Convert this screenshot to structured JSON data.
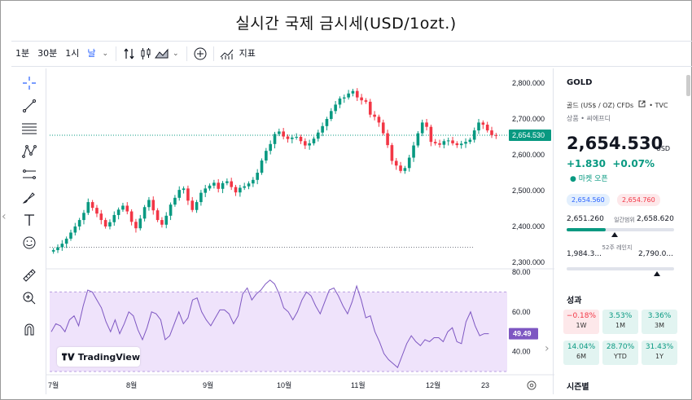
{
  "page_title": "실시간 국제 금시세(USD/1ozt.)",
  "toolbar": {
    "intervals": [
      "1분",
      "30분",
      "1시",
      "날"
    ],
    "active_interval": "날",
    "dropdown_glyph": "⌄",
    "indicators_label": "지표"
  },
  "chart_data": {
    "type": "candlestick",
    "symbol": "GOLD",
    "price_axis": [
      "2,800.000",
      "2,700.000",
      "2,600.000",
      "2,500.000",
      "2,400.000",
      "2,300.000"
    ],
    "price_range": [
      2300,
      2800
    ],
    "x_labels": [
      "7월",
      "8월",
      "9월",
      "10월",
      "11월",
      "12월",
      "23"
    ],
    "last_price_label": "2,654.530",
    "last_price": 2654.53,
    "dotted_level": 2342,
    "candles_close": [
      2334,
      2342,
      2352,
      2366,
      2383,
      2400,
      2418,
      2438,
      2468,
      2452,
      2436,
      2418,
      2400,
      2412,
      2432,
      2447,
      2458,
      2442,
      2413,
      2395,
      2422,
      2454,
      2474,
      2445,
      2418,
      2405,
      2430,
      2461,
      2480,
      2502,
      2506,
      2472,
      2446,
      2468,
      2494,
      2506,
      2514,
      2522,
      2505,
      2521,
      2526,
      2510,
      2495,
      2508,
      2512,
      2520,
      2530,
      2550,
      2584,
      2611,
      2630,
      2658,
      2665,
      2651,
      2644,
      2648,
      2650,
      2638,
      2626,
      2632,
      2645,
      2662,
      2680,
      2700,
      2722,
      2740,
      2757,
      2760,
      2771,
      2778,
      2760,
      2752,
      2748,
      2712,
      2706,
      2690,
      2660,
      2627,
      2583,
      2570,
      2555,
      2563,
      2592,
      2626,
      2660,
      2690,
      2678,
      2636,
      2632,
      2628,
      2638,
      2640,
      2632,
      2627,
      2631,
      2636,
      2642,
      2668,
      2690,
      2684,
      2668,
      2655,
      2654
    ],
    "rsi_axis": [
      "80.00",
      "60.00",
      "40.00"
    ],
    "rsi_range": [
      30,
      80
    ],
    "rsi_band": [
      70,
      30
    ],
    "rsi_last_label": "49.49",
    "rsi_values": [
      50,
      54,
      53,
      50,
      56,
      58,
      53,
      63,
      71,
      70,
      66,
      62,
      55,
      50,
      56,
      49,
      54,
      60,
      58,
      51,
      46,
      52,
      60,
      59,
      56,
      46,
      48,
      54,
      60,
      54,
      57,
      66,
      67,
      60,
      56,
      53,
      57,
      61,
      61,
      59,
      54,
      58,
      69,
      72,
      66,
      69,
      71,
      74,
      76,
      74,
      69,
      62,
      60,
      56,
      60,
      66,
      70,
      68,
      63,
      59,
      65,
      71,
      72,
      68,
      63,
      59,
      65,
      73,
      66,
      57,
      58,
      50,
      45,
      39,
      36,
      34,
      32,
      38,
      44,
      48,
      45,
      43,
      46,
      45,
      47,
      47,
      45,
      50,
      52,
      45,
      44,
      55,
      60,
      53,
      48,
      49,
      49
    ]
  },
  "watermark": "TradingView",
  "sidebar": {
    "symbol": "GOLD",
    "description": "골드 (US$ / OZ) CFDs",
    "exchange": "TVC",
    "category": "상품 • 씨에프디",
    "price": "2,654.530",
    "currency": "USD",
    "change": "+1.830",
    "change_pct": "+0.07%",
    "market_status": "마켓 오픈",
    "bid": "2,654.560",
    "ask": "2,654.760",
    "day_low": "2,651.260",
    "day_high": "2,658.620",
    "day_label": "일간범위",
    "wk_low": "1,984.3...",
    "wk_high": "2,790.0...",
    "wk_label": "52주 레인지",
    "performance_title": "성과",
    "performance": [
      {
        "value": "−0.18%",
        "label": "1W",
        "dir": "down"
      },
      {
        "value": "3.53%",
        "label": "1M",
        "dir": "up"
      },
      {
        "value": "3.36%",
        "label": "3M",
        "dir": "up"
      },
      {
        "value": "14.04%",
        "label": "6M",
        "dir": "up"
      },
      {
        "value": "28.70%",
        "label": "YTD",
        "dir": "up"
      },
      {
        "value": "31.43%",
        "label": "1Y",
        "dir": "up"
      }
    ],
    "seasonal_title": "시즌별"
  },
  "colors": {
    "up": "#089981",
    "down": "#f23645",
    "rsi": "#7e57c2",
    "accent": "#2962ff"
  },
  "icons": [
    "crosshair-icon",
    "trend-line-icon",
    "fib-icon",
    "pattern-icon",
    "projection-icon",
    "brush-icon",
    "text-icon",
    "emoji-icon",
    "ruler-icon",
    "zoom-icon",
    "magnet-icon",
    "compare-icon",
    "candles-icon",
    "area-icon",
    "add-icon",
    "indicators-icon",
    "external-link-icon",
    "settings-icon"
  ]
}
